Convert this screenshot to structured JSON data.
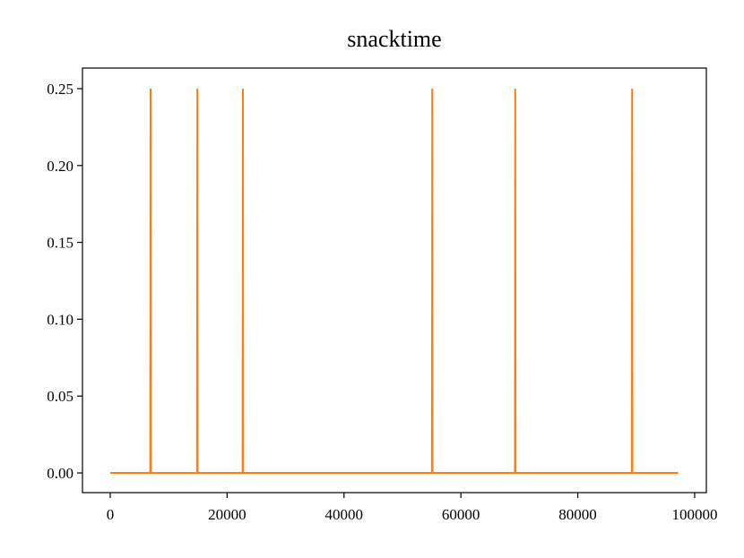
{
  "chart_data": {
    "type": "line",
    "title": "snacktime",
    "x": [
      0,
      6850,
      6900,
      6950,
      14850,
      14900,
      14950,
      22650,
      22700,
      22750,
      55050,
      55100,
      55150,
      69250,
      69300,
      69350,
      89250,
      89300,
      89350,
      97200
    ],
    "series": [
      {
        "color": "#ff7f0e",
        "values": [
          0,
          0,
          0.25,
          0,
          0,
          0.25,
          0,
          0,
          0.25,
          0,
          0,
          0.25,
          0,
          0,
          0.25,
          0,
          0,
          0.25,
          0,
          0
        ]
      }
    ],
    "xlim": [
      -4750,
      102000
    ],
    "xticks": [
      0,
      20000,
      40000,
      60000,
      80000,
      100000
    ],
    "ylim": [
      -0.0128,
      0.2634
    ],
    "yticks": [
      {
        "value": 0,
        "label": "0.00"
      },
      {
        "value": 0.05,
        "label": "0.05"
      },
      {
        "value": 0.1,
        "label": "0.10"
      },
      {
        "value": 0.15,
        "label": "0.15"
      },
      {
        "value": 0.2,
        "label": "0.20"
      },
      {
        "value": 0.25,
        "label": "0.25"
      }
    ],
    "grid": false
  }
}
